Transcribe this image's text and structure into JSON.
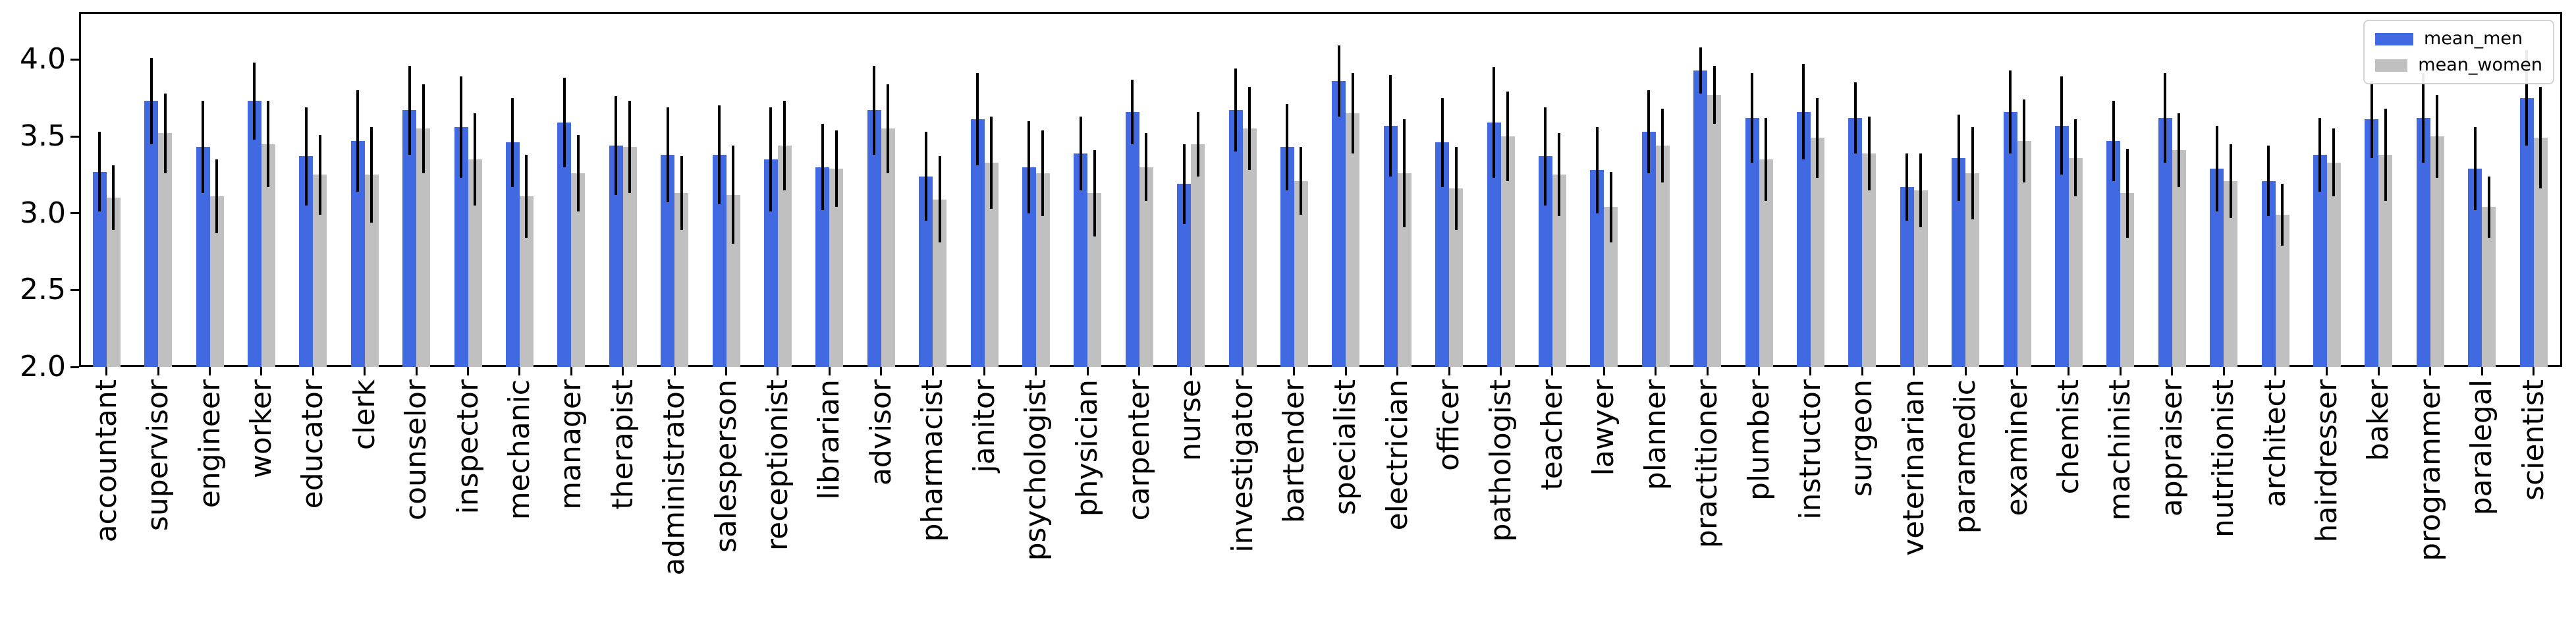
{
  "chart_data": {
    "type": "bar",
    "title": "",
    "xlabel": "",
    "ylabel": "",
    "categories": [
      "accountant",
      "supervisor",
      "engineer",
      "worker",
      "educator",
      "clerk",
      "counselor",
      "inspector",
      "mechanic",
      "manager",
      "therapist",
      "administrator",
      "salesperson",
      "receptionist",
      "librarian",
      "advisor",
      "pharmacist",
      "janitor",
      "psychologist",
      "physician",
      "carpenter",
      "nurse",
      "investigator",
      "bartender",
      "specialist",
      "electrician",
      "officer",
      "pathologist",
      "teacher",
      "lawyer",
      "planner",
      "practitioner",
      "plumber",
      "instructor",
      "surgeon",
      "veterinarian",
      "paramedic",
      "examiner",
      "chemist",
      "machinist",
      "appraiser",
      "nutritionist",
      "architect",
      "hairdresser",
      "baker",
      "programmer",
      "paralegal",
      "scientist"
    ],
    "series": [
      {
        "name": "mean_men",
        "color": "#4169E1",
        "values": [
          3.27,
          3.73,
          3.43,
          3.73,
          3.37,
          3.47,
          3.67,
          3.56,
          3.46,
          3.59,
          3.44,
          3.38,
          3.38,
          3.35,
          3.3,
          3.67,
          3.24,
          3.61,
          3.3,
          3.39,
          3.66,
          3.19,
          3.67,
          3.43,
          3.86,
          3.57,
          3.46,
          3.59,
          3.37,
          3.28,
          3.53,
          3.93,
          3.62,
          3.66,
          3.62,
          3.17,
          3.36,
          3.66,
          3.57,
          3.47,
          3.62,
          3.29,
          3.21,
          3.38,
          3.61,
          3.62,
          3.29,
          3.75
        ],
        "errors": [
          0.26,
          0.28,
          0.3,
          0.25,
          0.32,
          0.33,
          0.29,
          0.33,
          0.29,
          0.29,
          0.32,
          0.31,
          0.32,
          0.34,
          0.28,
          0.29,
          0.29,
          0.3,
          0.3,
          0.24,
          0.21,
          0.26,
          0.27,
          0.28,
          0.23,
          0.33,
          0.29,
          0.36,
          0.32,
          0.28,
          0.27,
          0.15,
          0.29,
          0.31,
          0.23,
          0.22,
          0.28,
          0.27,
          0.32,
          0.26,
          0.29,
          0.28,
          0.23,
          0.24,
          0.25,
          0.29,
          0.27,
          0.31
        ]
      },
      {
        "name": "mean_women",
        "color": "#C0C0C0",
        "values": [
          3.1,
          3.52,
          3.11,
          3.45,
          3.25,
          3.25,
          3.55,
          3.35,
          3.11,
          3.26,
          3.43,
          3.13,
          3.12,
          3.44,
          3.29,
          3.55,
          3.09,
          3.33,
          3.26,
          3.13,
          3.3,
          3.45,
          3.55,
          3.21,
          3.65,
          3.26,
          3.16,
          3.5,
          3.25,
          3.04,
          3.44,
          3.77,
          3.35,
          3.49,
          3.39,
          3.15,
          3.26,
          3.47,
          3.36,
          3.13,
          3.41,
          3.21,
          2.99,
          3.33,
          3.38,
          3.5,
          3.04,
          3.49
        ],
        "errors": [
          0.21,
          0.26,
          0.24,
          0.28,
          0.26,
          0.31,
          0.29,
          0.3,
          0.27,
          0.25,
          0.3,
          0.24,
          0.32,
          0.29,
          0.25,
          0.29,
          0.28,
          0.3,
          0.28,
          0.28,
          0.22,
          0.21,
          0.27,
          0.22,
          0.26,
          0.35,
          0.27,
          0.29,
          0.27,
          0.23,
          0.24,
          0.19,
          0.27,
          0.26,
          0.24,
          0.24,
          0.3,
          0.27,
          0.25,
          0.29,
          0.24,
          0.24,
          0.2,
          0.22,
          0.3,
          0.27,
          0.2,
          0.33
        ]
      }
    ],
    "error_bar_color": "#000000",
    "ylim": [
      2.0,
      4.31
    ],
    "yticks": [
      "2.0",
      "2.5",
      "3.0",
      "3.5",
      "4.0"
    ],
    "ytick_values": [
      2.0,
      2.5,
      3.0,
      3.5,
      4.0
    ],
    "grid": false,
    "legend_position": "upper right",
    "xtick_rotation": 90
  }
}
